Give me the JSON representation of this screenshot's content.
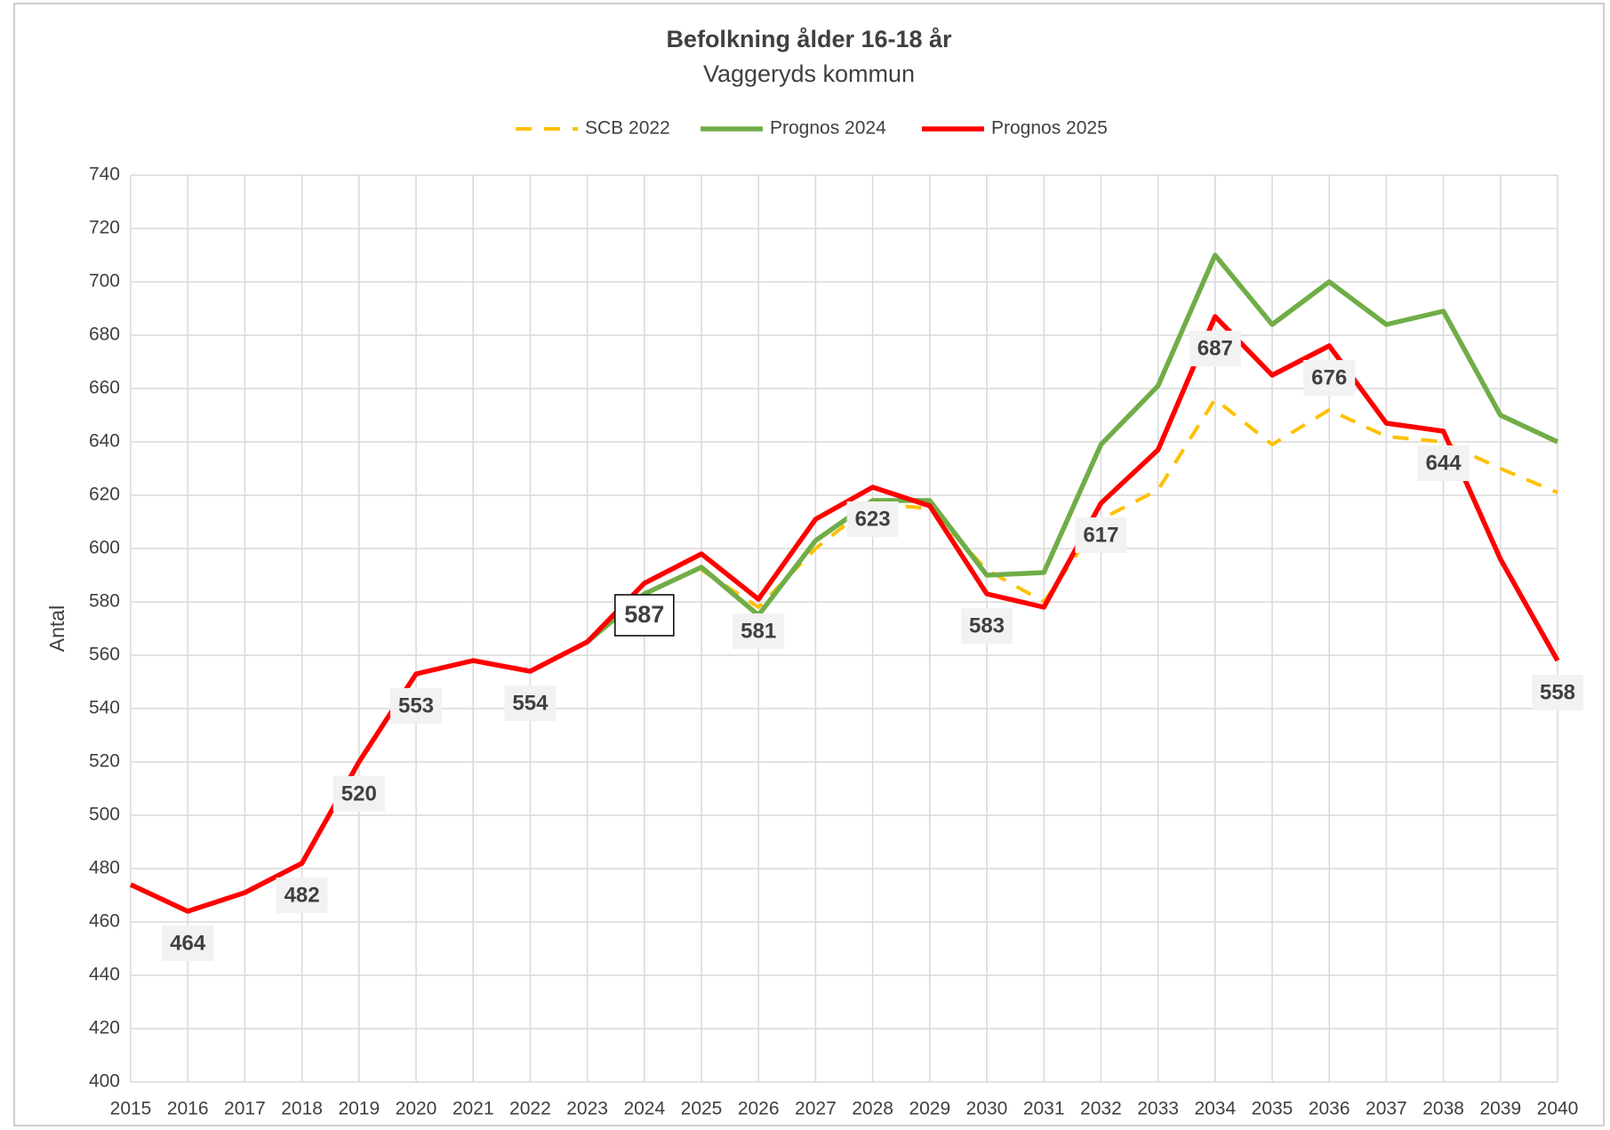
{
  "chart_data": {
    "type": "line",
    "title": "Befolkning ålder 16-18 år",
    "subtitle": "Vaggeryds kommun",
    "y_label": "Antal",
    "x": [
      2015,
      2016,
      2017,
      2018,
      2019,
      2020,
      2021,
      2022,
      2023,
      2024,
      2025,
      2026,
      2027,
      2028,
      2029,
      2030,
      2031,
      2032,
      2033,
      2034,
      2035,
      2036,
      2037,
      2038,
      2039,
      2040
    ],
    "xlim": [
      2015,
      2040
    ],
    "xticks": [
      2015,
      2016,
      2017,
      2018,
      2019,
      2020,
      2021,
      2022,
      2023,
      2024,
      2025,
      2026,
      2027,
      2028,
      2029,
      2030,
      2031,
      2032,
      2033,
      2034,
      2035,
      2036,
      2037,
      2038,
      2039,
      2040
    ],
    "ylim": [
      400,
      740
    ],
    "yticks": [
      400,
      420,
      440,
      460,
      480,
      500,
      520,
      540,
      560,
      580,
      600,
      620,
      640,
      660,
      680,
      700,
      720,
      740
    ],
    "grid": true,
    "legend": "top",
    "highlight_x": 2024,
    "series": [
      {
        "name": "SCB 2022",
        "color": "#FFC000",
        "dashed": true,
        "values": [
          null,
          null,
          null,
          null,
          null,
          null,
          null,
          null,
          null,
          null,
          592,
          578,
          600,
          617,
          615,
          592,
          580,
          611,
          622,
          656,
          639,
          652,
          642,
          640,
          630,
          621
        ]
      },
      {
        "name": "Prognos 2024",
        "color": "#70AD47",
        "values": [
          null,
          null,
          null,
          null,
          null,
          null,
          null,
          null,
          565,
          583,
          593,
          575,
          603,
          618,
          618,
          590,
          591,
          639,
          661,
          710,
          684,
          700,
          684,
          689,
          650,
          640
        ]
      },
      {
        "name": "Prognos 2025",
        "color": "#FF0000",
        "values": [
          474,
          464,
          471,
          482,
          520,
          553,
          558,
          554,
          565,
          587,
          598,
          581,
          611,
          623,
          616,
          583,
          578,
          617,
          637,
          687,
          665,
          676,
          647,
          644,
          596,
          558
        ],
        "value_labels": [
          null,
          "464",
          null,
          "482",
          "520",
          "553",
          null,
          "554",
          null,
          "587",
          null,
          "581",
          null,
          "623",
          null,
          "583",
          null,
          "617",
          null,
          "687",
          null,
          "676",
          null,
          "644",
          null,
          "558"
        ]
      }
    ]
  }
}
